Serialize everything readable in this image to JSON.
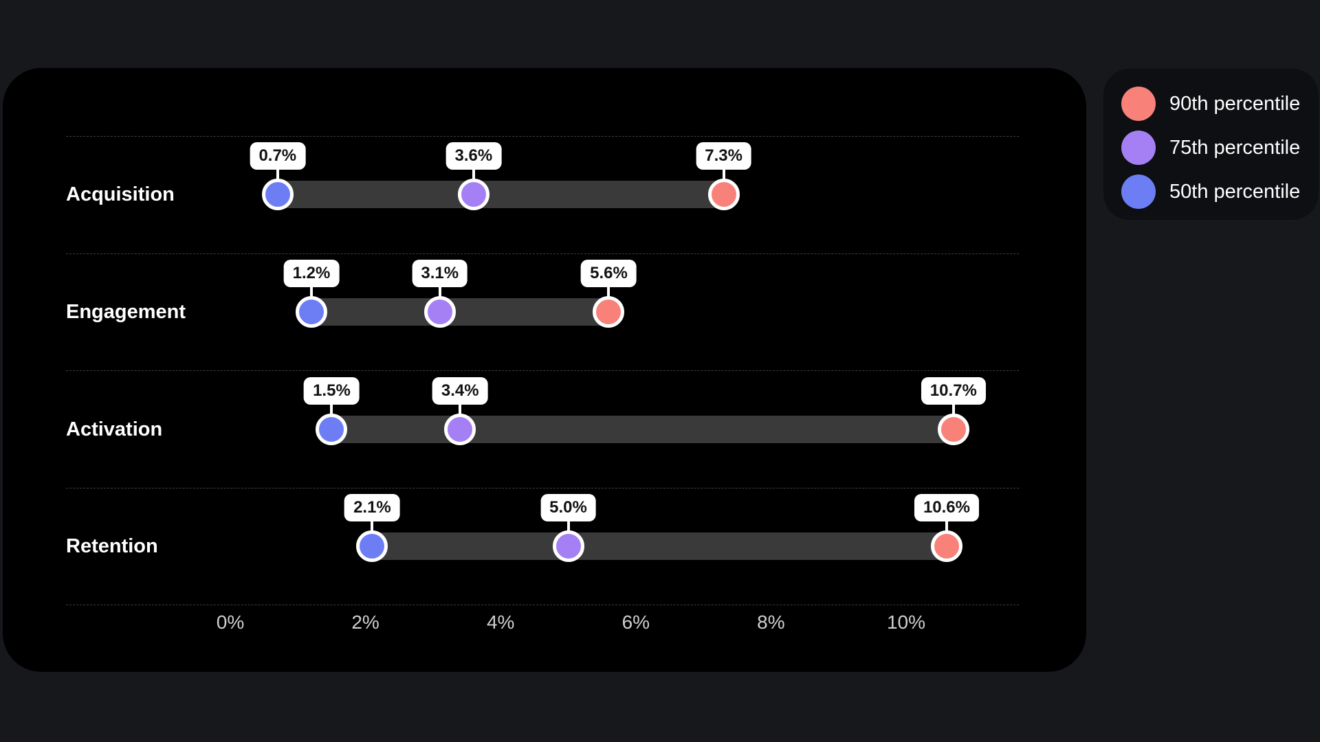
{
  "colors": {
    "page_bg": "#16181C",
    "card_bg": "#000000",
    "legend_bg": "#0D0F12",
    "bar": "#3A3A3A",
    "separator": "#3F3F3F",
    "axis_text": "#CFCFCF",
    "label_text": "#FFFFFF",
    "pill_bg": "#FFFFFF",
    "pill_text": "#121212",
    "p90": "#F8827A",
    "p75": "#A580F5",
    "p50": "#6D7EF5"
  },
  "legend": {
    "items": [
      {
        "key": "p90",
        "label": "90th percentile"
      },
      {
        "key": "p75",
        "label": "75th percentile"
      },
      {
        "key": "p50",
        "label": "50th percentile"
      }
    ]
  },
  "chart_data": {
    "type": "scatter",
    "variant": "dumbbell-percentile-range",
    "title": "",
    "xlabel": "",
    "ylabel": "",
    "categories": [
      "Acquisition",
      "Engagement",
      "Activation",
      "Retention"
    ],
    "series": [
      {
        "key": "p50",
        "name": "50th percentile",
        "color": "#6D7EF5",
        "values": [
          0.7,
          1.2,
          1.5,
          2.1
        ]
      },
      {
        "key": "p75",
        "name": "75th percentile",
        "color": "#A580F5",
        "values": [
          3.6,
          3.1,
          3.4,
          5.0
        ]
      },
      {
        "key": "p90",
        "name": "90th percentile",
        "color": "#F8827A",
        "values": [
          7.3,
          5.6,
          10.7,
          10.6
        ]
      }
    ],
    "value_labels": [
      [
        "0.7%",
        "3.6%",
        "7.3%"
      ],
      [
        "1.2%",
        "3.1%",
        "5.6%"
      ],
      [
        "1.5%",
        "3.4%",
        "10.7%"
      ],
      [
        "2.1%",
        "5.0%",
        "10.6%"
      ]
    ],
    "x_ticks": [
      {
        "label": "0%",
        "value": 0
      },
      {
        "label": "2%",
        "value": 2
      },
      {
        "label": "4%",
        "value": 4
      },
      {
        "label": "6%",
        "value": 6
      },
      {
        "label": "8%",
        "value": 8
      },
      {
        "label": "10%",
        "value": 10
      }
    ],
    "xlim": [
      0,
      11.7
    ],
    "grid": "dashed horizontal row separators",
    "legend_position": "top-right, outside chart card",
    "range_bar": "spans from 50th percentile dot to 90th percentile dot per category"
  }
}
